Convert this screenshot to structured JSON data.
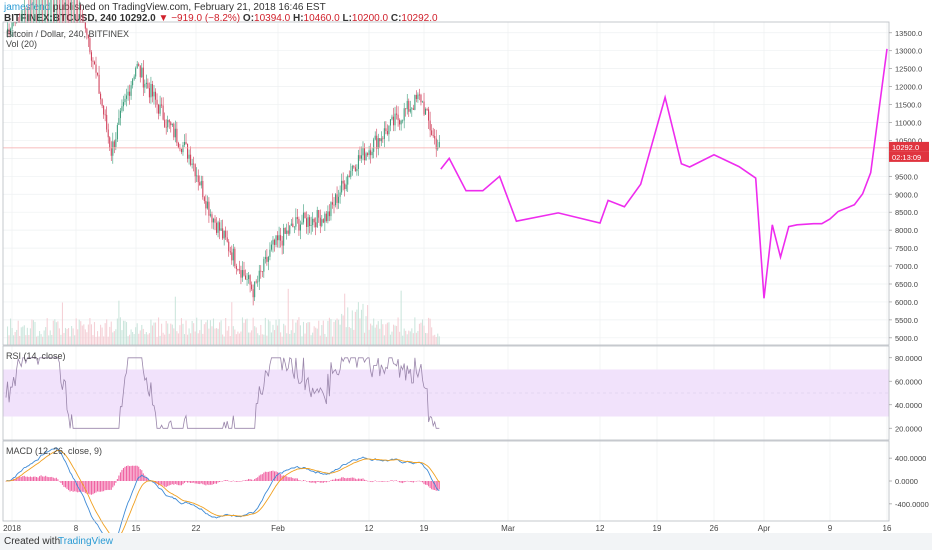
{
  "header": {
    "username": "jamesfend",
    "published_text": "published on TradingView.com, February 21, 2018 16:46 EST",
    "symbol": "BITFINEX:BTCUSD, 240",
    "last": "10292.0",
    "arrow": "▼",
    "change": "−919.0 (−8.2%)",
    "o_label": "O:",
    "o_value": "10394.0",
    "h_label": "H:",
    "h_value": "10460.0",
    "l_label": "L:",
    "l_value": "10200.0",
    "c_label": "C:",
    "c_value": "10292.0"
  },
  "panes": {
    "main_label": "Bitcoin / Dollar, 240, BITFINEX",
    "vol_label": "Vol (20)",
    "rsi_label": "RSI (14, close)",
    "macd_label": "MACD (12, 26, close, 9)"
  },
  "price_tag": {
    "price": "10292.0",
    "countdown": "02:13:09"
  },
  "footer": {
    "created_with": "Created with",
    "brand": "TradingView"
  },
  "colors": {
    "up": "#3a9c7a",
    "down": "#d0405a",
    "projection": "#ee2cee",
    "rsi_band": "#f1e2fb",
    "rsi_line": "#9a86ab",
    "macd_line": "#3f8bd6",
    "signal_line": "#f0a020",
    "histogram": "#f062a2",
    "price_line": "#f6a7a7"
  },
  "chart_data": [
    {
      "type": "line",
      "name": "price-projection",
      "x_ticks": [
        "2018",
        "8",
        "15",
        "22",
        "Feb",
        "12",
        "19",
        "Mar",
        "12",
        "19",
        "26",
        "Apr",
        "9",
        "16"
      ],
      "x_tick_dates": [
        "2018-01-01",
        "2018-01-08",
        "2018-01-15",
        "2018-01-22",
        "2018-02-01",
        "2018-02-12",
        "2018-02-19",
        "2018-03-01",
        "2018-03-12",
        "2018-03-19",
        "2018-03-26",
        "2018-04-01",
        "2018-04-09",
        "2018-04-16"
      ],
      "y_ticks": [
        "13500.0",
        "13000.0",
        "12500.0",
        "12000.0",
        "11500.0",
        "11000.0",
        "10500.0",
        "10000.0",
        "9500.0",
        "9000.0",
        "8500.0",
        "8000.0",
        "7500.0",
        "7000.0",
        "6500.0",
        "6000.0",
        "5500.0",
        "5000.0"
      ],
      "ylim": [
        4800,
        13800
      ],
      "current_price": 10292,
      "x": [
        "2018-02-21",
        "2018-02-22",
        "2018-02-24",
        "2018-02-26",
        "2018-02-28",
        "2018-03-02",
        "2018-03-07",
        "2018-03-12",
        "2018-03-13",
        "2018-03-15",
        "2018-03-17",
        "2018-03-20",
        "2018-03-22",
        "2018-03-23",
        "2018-03-26",
        "2018-03-29",
        "2018-03-31",
        "2018-04-01",
        "2018-04-02",
        "2018-04-03",
        "2018-04-04",
        "2018-04-05",
        "2018-04-07",
        "2018-04-08",
        "2018-04-09",
        "2018-04-10",
        "2018-04-12",
        "2018-04-13",
        "2018-04-14",
        "2018-04-16"
      ],
      "y": [
        9700,
        10000,
        9100,
        9100,
        9500,
        8250,
        8480,
        8200,
        8830,
        8650,
        9280,
        11700,
        9850,
        9760,
        10100,
        9770,
        9450,
        6100,
        8150,
        7250,
        8100,
        8150,
        8180,
        8180,
        8310,
        8520,
        8710,
        9010,
        9600,
        13050
      ]
    },
    {
      "type": "line",
      "name": "rsi",
      "y_ticks": [
        "80.0000",
        "60.0000",
        "40.0000",
        "20.0000"
      ],
      "ylim": [
        10,
        90
      ],
      "band": [
        30,
        70
      ]
    },
    {
      "type": "bar",
      "name": "macd",
      "y_ticks": [
        "400.0000",
        "0.0000",
        "-400.0000"
      ],
      "ylim": [
        -700,
        700
      ]
    }
  ]
}
